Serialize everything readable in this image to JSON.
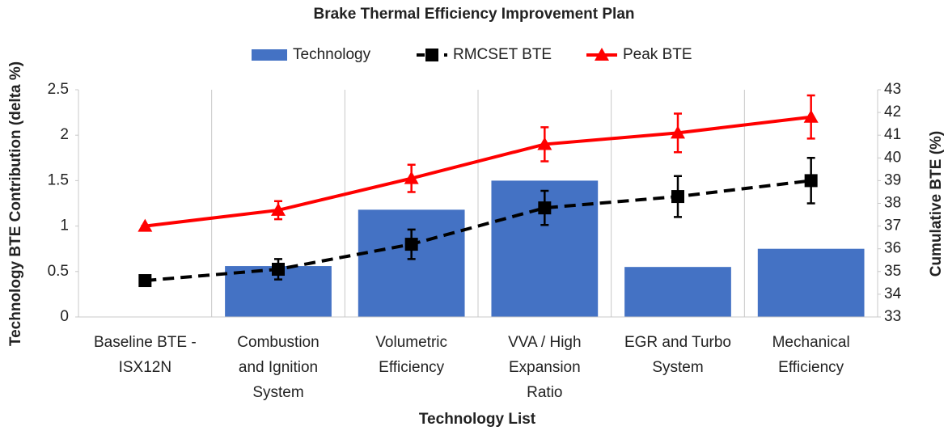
{
  "chart_data": {
    "type": "bar_line",
    "title": "Brake Thermal Efficiency Improvement Plan",
    "xlabel": "Technology List",
    "ylabel": "Technology BTE Contribution (delta %)",
    "y2label": "Cumulative BTE (%)",
    "categories": [
      [
        "Baseline BTE -",
        "ISX12N"
      ],
      [
        "Combustion",
        "and Ignition",
        "System"
      ],
      [
        "Volumetric",
        "Efficiency"
      ],
      [
        "VVA / High",
        "Expansion",
        "Ratio"
      ],
      [
        "EGR and Turbo",
        "System"
      ],
      [
        "Mechanical",
        "Efficiency"
      ]
    ],
    "series": [
      {
        "name": "Technology",
        "type": "bar",
        "color": "#4472c4",
        "values": [
          0,
          0.56,
          1.18,
          1.5,
          0.55,
          0.75
        ]
      },
      {
        "name": "RMCSET BTE",
        "type": "line",
        "axis": "y2",
        "color": "#000000",
        "dashed": true,
        "marker": "square",
        "values": [
          34.6,
          35.1,
          36.2,
          37.8,
          38.3,
          39.0
        ],
        "errors": [
          0,
          0.45,
          0.65,
          0.75,
          0.9,
          1.0
        ]
      },
      {
        "name": "Peak BTE",
        "type": "line",
        "axis": "y2",
        "color": "#ff0000",
        "dashed": false,
        "marker": "triangle",
        "values": [
          37.0,
          37.7,
          39.1,
          40.6,
          41.1,
          41.8
        ],
        "errors": [
          0,
          0.4,
          0.6,
          0.75,
          0.85,
          0.95
        ]
      }
    ],
    "ylim": [
      0,
      2.5
    ],
    "yticks": [
      0,
      0.5,
      1,
      1.5,
      2,
      2.5
    ],
    "y2lim": [
      33,
      43
    ],
    "y2ticks": [
      33,
      34,
      35,
      36,
      37,
      38,
      39,
      40,
      41,
      42,
      43
    ],
    "grid": "x",
    "legend": "top"
  }
}
